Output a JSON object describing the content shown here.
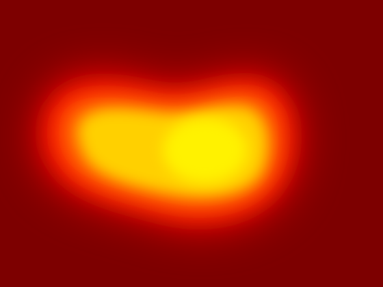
{
  "image": {
    "subject": "thermal-heat-blob",
    "palette": {
      "background": "#7d0000",
      "outer_glow": "#d40000",
      "mid": "#ff2a00",
      "warm": "#ff8c00",
      "hot": "#ffd800",
      "core": "#fff000"
    }
  }
}
